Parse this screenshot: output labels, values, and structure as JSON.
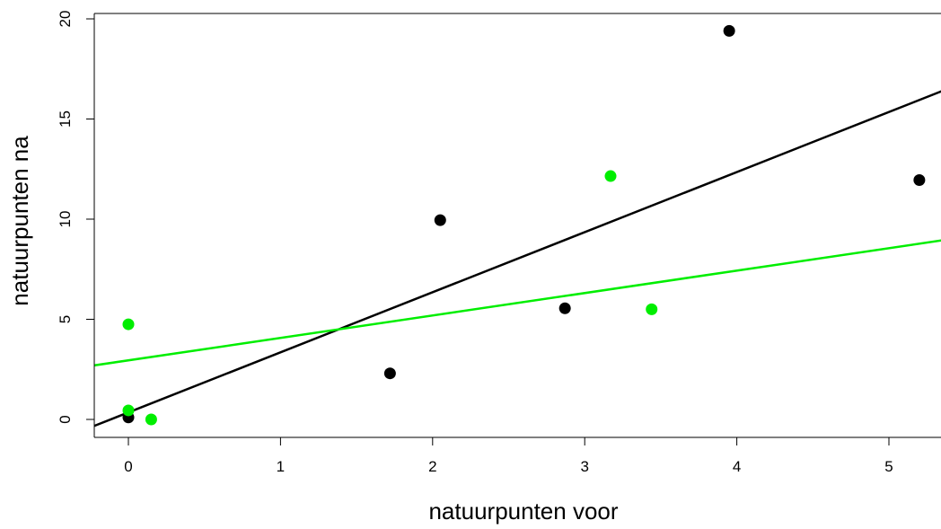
{
  "chart_data": {
    "type": "scatter",
    "title": "",
    "xlabel": "natuurpunten voor",
    "ylabel": "natuurpunten na",
    "xlim": [
      -0.22,
      5.35
    ],
    "ylim": [
      -0.8,
      20.3
    ],
    "x_ticks": [
      0,
      1,
      2,
      3,
      4,
      5
    ],
    "y_ticks": [
      0,
      5,
      10,
      15,
      20
    ],
    "x_tick_labels": [
      "0",
      "1",
      "2",
      "3",
      "4",
      "5"
    ],
    "y_tick_labels": [
      "0",
      "5",
      "10",
      "15",
      "20"
    ],
    "grid": false,
    "legend": "none",
    "series": [
      {
        "color": "#000000",
        "points": [
          [
            0,
            0.1
          ],
          [
            1.72,
            2.3
          ],
          [
            2.05,
            9.95
          ],
          [
            2.87,
            5.55
          ],
          [
            3.95,
            19.4
          ],
          [
            5.2,
            11.95
          ]
        ],
        "fit": {
          "intercept": 0.35,
          "slope": 3.0
        }
      },
      {
        "color": "#00ee00",
        "points": [
          [
            0,
            4.75
          ],
          [
            0,
            0.45
          ],
          [
            0.15,
            0.0
          ],
          [
            3.17,
            12.15
          ],
          [
            3.44,
            5.5
          ]
        ],
        "fit": {
          "intercept": 2.95,
          "slope": 1.12
        }
      }
    ]
  }
}
